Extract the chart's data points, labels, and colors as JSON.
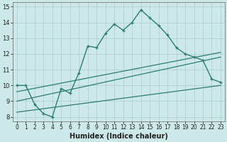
{
  "xlabel": "Humidex (Indice chaleur)",
  "background_color": "#cce8e8",
  "grid_color": "#aacccc",
  "line_color": "#2e7d6e",
  "xlim": [
    -0.5,
    23.5
  ],
  "ylim": [
    7.7,
    15.3
  ],
  "yticks": [
    8,
    9,
    10,
    11,
    12,
    13,
    14,
    15
  ],
  "xticks": [
    0,
    1,
    2,
    3,
    4,
    5,
    6,
    7,
    8,
    9,
    10,
    11,
    12,
    13,
    14,
    15,
    16,
    17,
    18,
    19,
    20,
    21,
    22,
    23
  ],
  "main_line_x": [
    0,
    1,
    2,
    3,
    4,
    5,
    6,
    7,
    8,
    9,
    10,
    11,
    12,
    13,
    14,
    15,
    16,
    17,
    18,
    19,
    20,
    21,
    22,
    23
  ],
  "main_line_y": [
    10.0,
    10.0,
    8.8,
    8.2,
    8.0,
    9.8,
    9.5,
    10.8,
    12.5,
    12.4,
    13.3,
    13.9,
    13.5,
    14.0,
    14.8,
    14.3,
    13.8,
    13.2,
    12.4,
    12.0,
    11.8,
    11.6,
    10.4,
    10.2
  ],
  "line1_x": [
    0,
    23
  ],
  "line1_y": [
    8.3,
    10.0
  ],
  "line2_x": [
    0,
    23
  ],
  "line2_y": [
    9.0,
    11.8
  ],
  "line3_x": [
    0,
    23
  ],
  "line3_y": [
    9.6,
    12.1
  ]
}
